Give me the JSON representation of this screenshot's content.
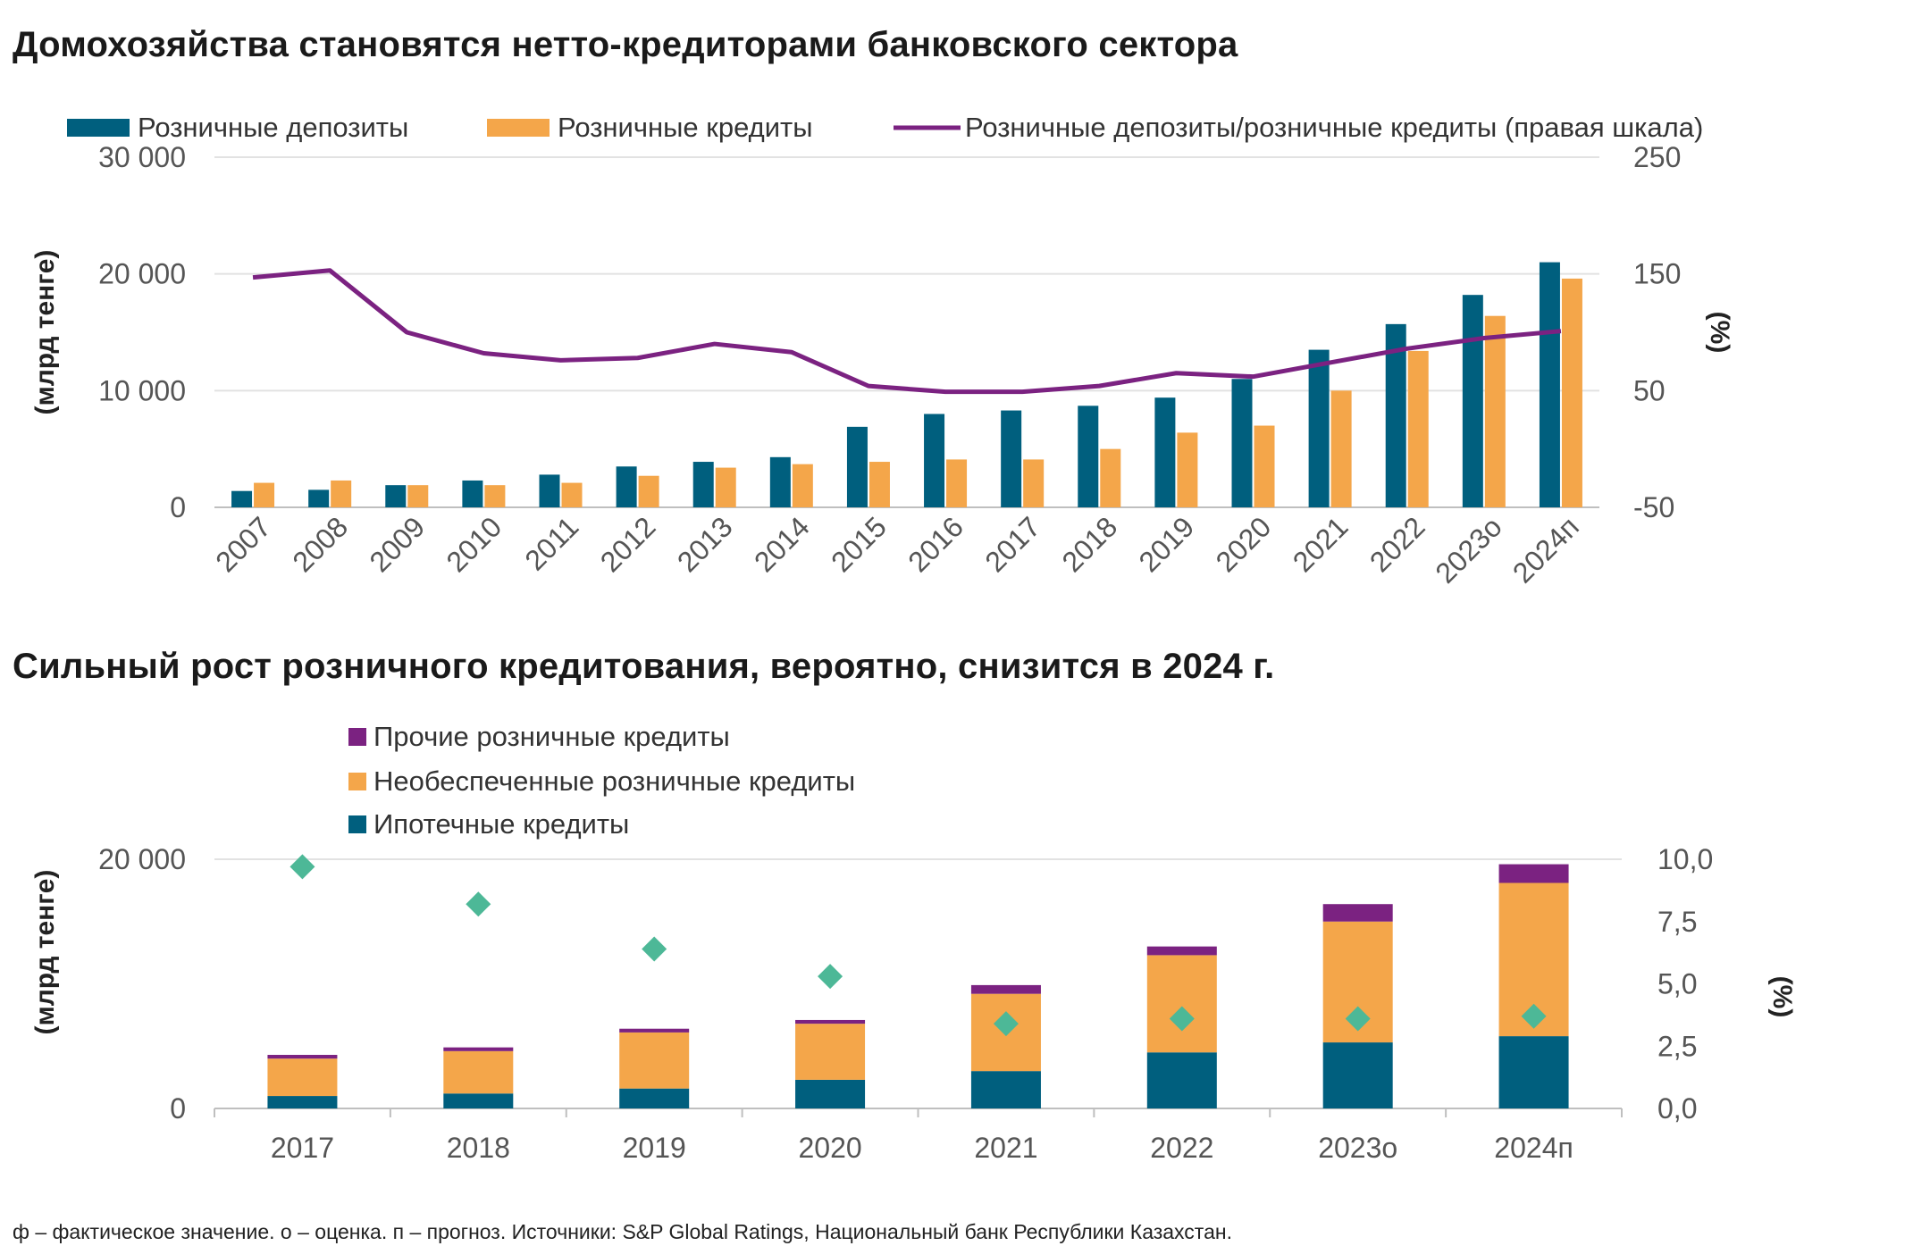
{
  "chart_data": [
    {
      "type": "bar",
      "title": "Домохозяйства становятся нетто-кредиторами банковского сектора",
      "ylabel": "(млрд тенге)",
      "y2label": "(%)",
      "ylim": [
        0,
        30000
      ],
      "y2lim": [
        -50,
        250
      ],
      "yticks": [
        "0",
        "10 000",
        "20 000",
        "30 000"
      ],
      "y2ticks": [
        "-50",
        "50",
        "150",
        "250"
      ],
      "categories": [
        "2007",
        "2008",
        "2009",
        "2010",
        "2011",
        "2012",
        "2013",
        "2014",
        "2015",
        "2016",
        "2017",
        "2018",
        "2019",
        "2020",
        "2021",
        "2022",
        "2023о",
        "2024п"
      ],
      "legend_position": "top",
      "series": [
        {
          "name": "Розничные депозиты",
          "kind": "bar",
          "color": "#005F7E",
          "values": [
            1400,
            1500,
            1900,
            2300,
            2800,
            3500,
            3900,
            4300,
            6900,
            8000,
            8300,
            8700,
            9400,
            11000,
            13500,
            15700,
            18200,
            21000
          ]
        },
        {
          "name": "Розничные кредиты",
          "kind": "bar",
          "color": "#F4A64A",
          "values": [
            2100,
            2300,
            1900,
            1900,
            2100,
            2700,
            3400,
            3700,
            3900,
            4100,
            4100,
            5000,
            6400,
            7000,
            10000,
            13400,
            16400,
            19600
          ]
        },
        {
          "name": "Розничные депозиты/розничные кредиты (правая шкала)",
          "kind": "line",
          "axis": "right",
          "color": "#7B2281",
          "values": [
            147,
            153,
            100,
            82,
            76,
            78,
            90,
            83,
            54,
            49,
            49,
            54,
            65,
            62,
            74,
            86,
            95,
            101
          ]
        }
      ]
    },
    {
      "type": "bar",
      "stacked": true,
      "title": "Сильный рост розничного кредитования, вероятно, снизится в 2024 г.",
      "ylabel": "(млрд тенге)",
      "y2label": "(%)",
      "ylim": [
        0,
        20000
      ],
      "y2lim": [
        0,
        10
      ],
      "yticks": [
        "0",
        "20 000"
      ],
      "y2ticks": [
        "0,0",
        "2,5",
        "5,0",
        "7,5",
        "10,0"
      ],
      "categories": [
        "2017",
        "2018",
        "2019",
        "2020",
        "2021",
        "2022",
        "2023о",
        "2024п"
      ],
      "legend_position": "top-left",
      "series": [
        {
          "name": "Ипотечные кредиты",
          "kind": "bar",
          "color": "#005F7E",
          "values": [
            1000,
            1200,
            1600,
            2300,
            3000,
            4500,
            5300,
            5800
          ]
        },
        {
          "name": "Необеспеченные розничные кредиты",
          "kind": "bar",
          "color": "#F4A64A",
          "values": [
            3000,
            3400,
            4500,
            4500,
            6200,
            7800,
            9700,
            12300
          ]
        },
        {
          "name": "Прочие розничные кредиты",
          "kind": "bar",
          "color": "#7B2281",
          "values": [
            300,
            300,
            300,
            300,
            700,
            700,
            1400,
            1500
          ]
        },
        {
          "kind": "marker",
          "axis": "right",
          "color": "#4DB897",
          "values": [
            9.7,
            8.2,
            6.4,
            5.3,
            3.4,
            3.6,
            3.6,
            3.7
          ]
        }
      ]
    }
  ],
  "footnote": "ф – фактическое значение. о – оценка. п – прогноз. Источники: S&P Global Ratings, Национальный банк Республики Казахстан."
}
